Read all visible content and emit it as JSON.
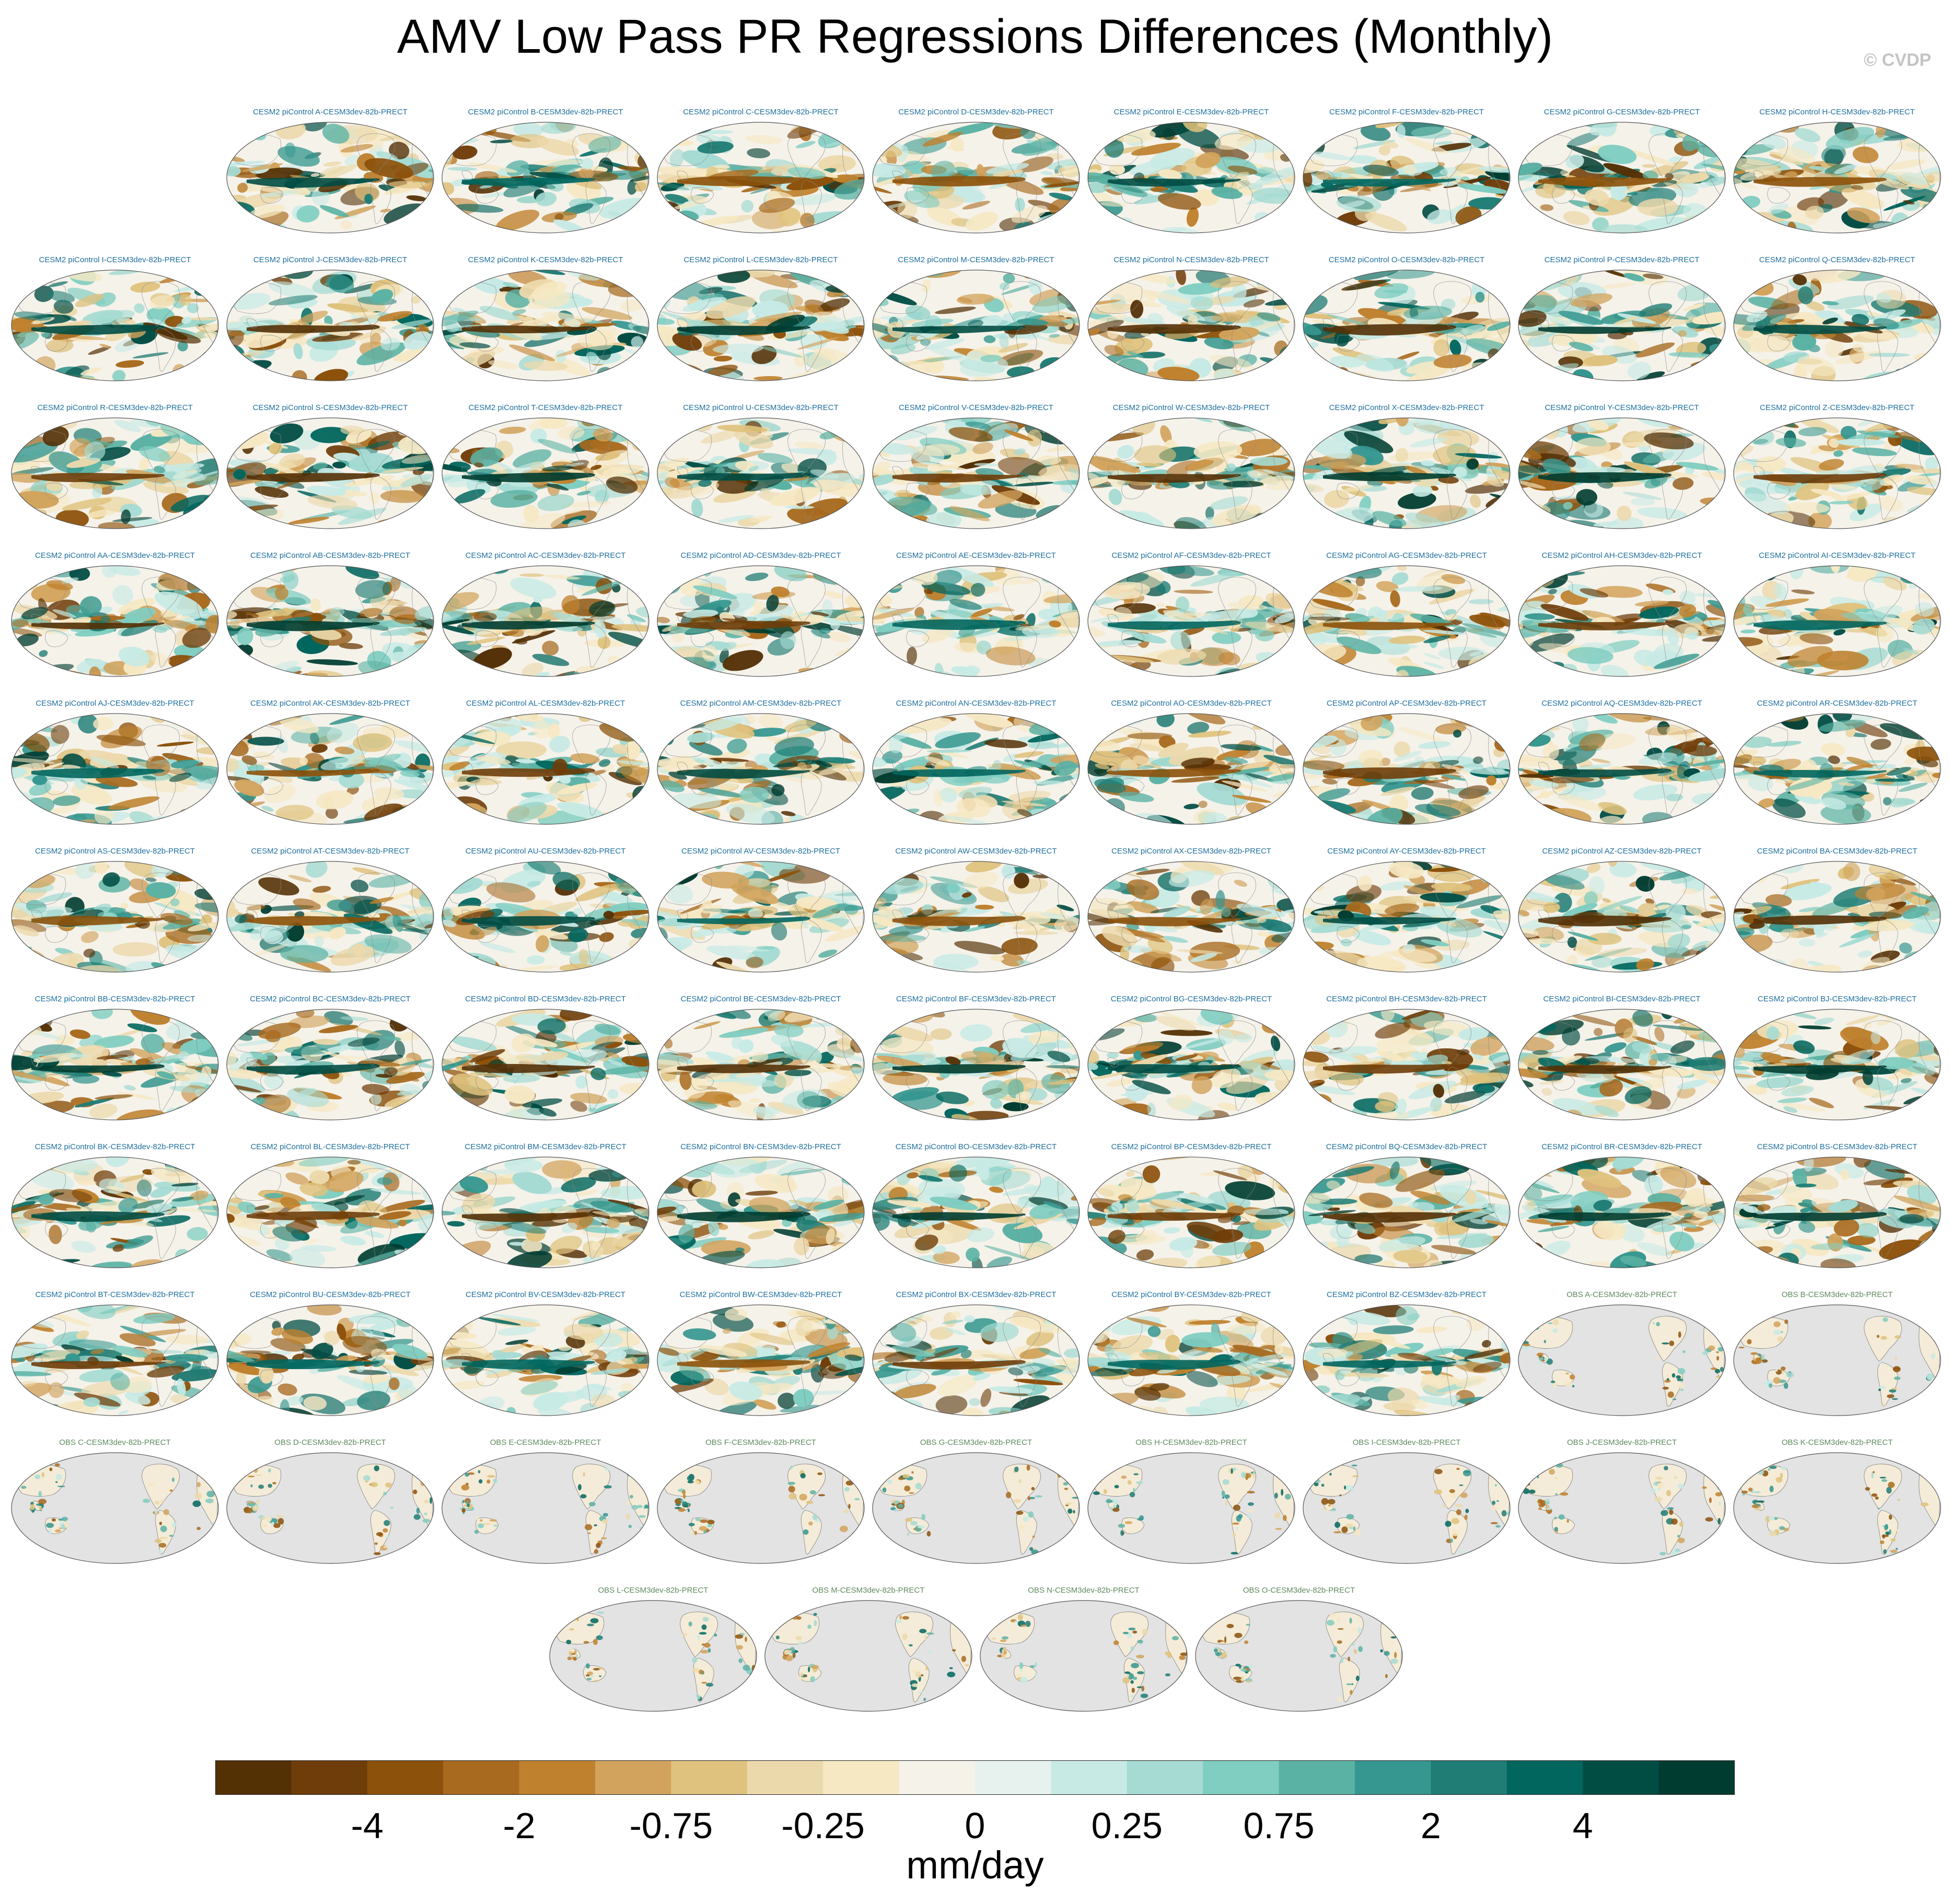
{
  "title": "AMV Low Pass PR Regressions Differences (Monthly)",
  "copyright": "© CVDP",
  "colors": {
    "model_label": "#1f6f9e",
    "obs_label": "#5d8a5d",
    "land_obs": "#e3e3e3",
    "coast": "#8a8a8a"
  },
  "panels": [
    {
      "label": "CESM2 piControl A-CESM3dev-82b-PRECT",
      "type": "model"
    },
    {
      "label": "CESM2 piControl B-CESM3dev-82b-PRECT",
      "type": "model"
    },
    {
      "label": "CESM2 piControl C-CESM3dev-82b-PRECT",
      "type": "model"
    },
    {
      "label": "CESM2 piControl D-CESM3dev-82b-PRECT",
      "type": "model"
    },
    {
      "label": "CESM2 piControl E-CESM3dev-82b-PRECT",
      "type": "model"
    },
    {
      "label": "CESM2 piControl F-CESM3dev-82b-PRECT",
      "type": "model"
    },
    {
      "label": "CESM2 piControl G-CESM3dev-82b-PRECT",
      "type": "model"
    },
    {
      "label": "CESM2 piControl H-CESM3dev-82b-PRECT",
      "type": "model"
    },
    {
      "label": "CESM2 piControl I-CESM3dev-82b-PRECT",
      "type": "model"
    },
    {
      "label": "CESM2 piControl J-CESM3dev-82b-PRECT",
      "type": "model"
    },
    {
      "label": "CESM2 piControl K-CESM3dev-82b-PRECT",
      "type": "model"
    },
    {
      "label": "CESM2 piControl L-CESM3dev-82b-PRECT",
      "type": "model"
    },
    {
      "label": "CESM2 piControl M-CESM3dev-82b-PRECT",
      "type": "model"
    },
    {
      "label": "CESM2 piControl N-CESM3dev-82b-PRECT",
      "type": "model"
    },
    {
      "label": "CESM2 piControl O-CESM3dev-82b-PRECT",
      "type": "model"
    },
    {
      "label": "CESM2 piControl P-CESM3dev-82b-PRECT",
      "type": "model"
    },
    {
      "label": "CESM2 piControl Q-CESM3dev-82b-PRECT",
      "type": "model"
    },
    {
      "label": "CESM2 piControl R-CESM3dev-82b-PRECT",
      "type": "model"
    },
    {
      "label": "CESM2 piControl S-CESM3dev-82b-PRECT",
      "type": "model"
    },
    {
      "label": "CESM2 piControl T-CESM3dev-82b-PRECT",
      "type": "model"
    },
    {
      "label": "CESM2 piControl U-CESM3dev-82b-PRECT",
      "type": "model"
    },
    {
      "label": "CESM2 piControl V-CESM3dev-82b-PRECT",
      "type": "model"
    },
    {
      "label": "CESM2 piControl W-CESM3dev-82b-PRECT",
      "type": "model"
    },
    {
      "label": "CESM2 piControl X-CESM3dev-82b-PRECT",
      "type": "model"
    },
    {
      "label": "CESM2 piControl Y-CESM3dev-82b-PRECT",
      "type": "model"
    },
    {
      "label": "CESM2 piControl Z-CESM3dev-82b-PRECT",
      "type": "model"
    },
    {
      "label": "CESM2 piControl AA-CESM3dev-82b-PRECT",
      "type": "model"
    },
    {
      "label": "CESM2 piControl AB-CESM3dev-82b-PRECT",
      "type": "model"
    },
    {
      "label": "CESM2 piControl AC-CESM3dev-82b-PRECT",
      "type": "model"
    },
    {
      "label": "CESM2 piControl AD-CESM3dev-82b-PRECT",
      "type": "model"
    },
    {
      "label": "CESM2 piControl AE-CESM3dev-82b-PRECT",
      "type": "model"
    },
    {
      "label": "CESM2 piControl AF-CESM3dev-82b-PRECT",
      "type": "model"
    },
    {
      "label": "CESM2 piControl AG-CESM3dev-82b-PRECT",
      "type": "model"
    },
    {
      "label": "CESM2 piControl AH-CESM3dev-82b-PRECT",
      "type": "model"
    },
    {
      "label": "CESM2 piControl AI-CESM3dev-82b-PRECT",
      "type": "model"
    },
    {
      "label": "CESM2 piControl AJ-CESM3dev-82b-PRECT",
      "type": "model"
    },
    {
      "label": "CESM2 piControl AK-CESM3dev-82b-PRECT",
      "type": "model"
    },
    {
      "label": "CESM2 piControl AL-CESM3dev-82b-PRECT",
      "type": "model"
    },
    {
      "label": "CESM2 piControl AM-CESM3dev-82b-PRECT",
      "type": "model"
    },
    {
      "label": "CESM2 piControl AN-CESM3dev-82b-PRECT",
      "type": "model"
    },
    {
      "label": "CESM2 piControl AO-CESM3dev-82b-PRECT",
      "type": "model"
    },
    {
      "label": "CESM2 piControl AP-CESM3dev-82b-PRECT",
      "type": "model"
    },
    {
      "label": "CESM2 piControl AQ-CESM3dev-82b-PRECT",
      "type": "model"
    },
    {
      "label": "CESM2 piControl AR-CESM3dev-82b-PRECT",
      "type": "model"
    },
    {
      "label": "CESM2 piControl AS-CESM3dev-82b-PRECT",
      "type": "model"
    },
    {
      "label": "CESM2 piControl AT-CESM3dev-82b-PRECT",
      "type": "model"
    },
    {
      "label": "CESM2 piControl AU-CESM3dev-82b-PRECT",
      "type": "model"
    },
    {
      "label": "CESM2 piControl AV-CESM3dev-82b-PRECT",
      "type": "model"
    },
    {
      "label": "CESM2 piControl AW-CESM3dev-82b-PRECT",
      "type": "model"
    },
    {
      "label": "CESM2 piControl AX-CESM3dev-82b-PRECT",
      "type": "model"
    },
    {
      "label": "CESM2 piControl AY-CESM3dev-82b-PRECT",
      "type": "model"
    },
    {
      "label": "CESM2 piControl AZ-CESM3dev-82b-PRECT",
      "type": "model"
    },
    {
      "label": "CESM2 piControl BA-CESM3dev-82b-PRECT",
      "type": "model"
    },
    {
      "label": "CESM2 piControl BB-CESM3dev-82b-PRECT",
      "type": "model"
    },
    {
      "label": "CESM2 piControl BC-CESM3dev-82b-PRECT",
      "type": "model"
    },
    {
      "label": "CESM2 piControl BD-CESM3dev-82b-PRECT",
      "type": "model"
    },
    {
      "label": "CESM2 piControl BE-CESM3dev-82b-PRECT",
      "type": "model"
    },
    {
      "label": "CESM2 piControl BF-CESM3dev-82b-PRECT",
      "type": "model"
    },
    {
      "label": "CESM2 piControl BG-CESM3dev-82b-PRECT",
      "type": "model"
    },
    {
      "label": "CESM2 piControl BH-CESM3dev-82b-PRECT",
      "type": "model"
    },
    {
      "label": "CESM2 piControl BI-CESM3dev-82b-PRECT",
      "type": "model"
    },
    {
      "label": "CESM2 piControl BJ-CESM3dev-82b-PRECT",
      "type": "model"
    },
    {
      "label": "CESM2 piControl BK-CESM3dev-82b-PRECT",
      "type": "model"
    },
    {
      "label": "CESM2 piControl BL-CESM3dev-82b-PRECT",
      "type": "model"
    },
    {
      "label": "CESM2 piControl BM-CESM3dev-82b-PRECT",
      "type": "model"
    },
    {
      "label": "CESM2 piControl BN-CESM3dev-82b-PRECT",
      "type": "model"
    },
    {
      "label": "CESM2 piControl BO-CESM3dev-82b-PRECT",
      "type": "model"
    },
    {
      "label": "CESM2 piControl BP-CESM3dev-82b-PRECT",
      "type": "model"
    },
    {
      "label": "CESM2 piControl BQ-CESM3dev-82b-PRECT",
      "type": "model"
    },
    {
      "label": "CESM2 piControl BR-CESM3dev-82b-PRECT",
      "type": "model"
    },
    {
      "label": "CESM2 piControl BS-CESM3dev-82b-PRECT",
      "type": "model"
    },
    {
      "label": "CESM2 piControl BT-CESM3dev-82b-PRECT",
      "type": "model"
    },
    {
      "label": "CESM2 piControl BU-CESM3dev-82b-PRECT",
      "type": "model"
    },
    {
      "label": "CESM2 piControl BV-CESM3dev-82b-PRECT",
      "type": "model"
    },
    {
      "label": "CESM2 piControl BW-CESM3dev-82b-PRECT",
      "type": "model"
    },
    {
      "label": "CESM2 piControl BX-CESM3dev-82b-PRECT",
      "type": "model"
    },
    {
      "label": "CESM2 piControl BY-CESM3dev-82b-PRECT",
      "type": "model"
    },
    {
      "label": "CESM2 piControl BZ-CESM3dev-82b-PRECT",
      "type": "model"
    },
    {
      "label": "OBS A-CESM3dev-82b-PRECT",
      "type": "obs"
    },
    {
      "label": "OBS B-CESM3dev-82b-PRECT",
      "type": "obs"
    },
    {
      "label": "OBS C-CESM3dev-82b-PRECT",
      "type": "obs"
    },
    {
      "label": "OBS D-CESM3dev-82b-PRECT",
      "type": "obs"
    },
    {
      "label": "OBS E-CESM3dev-82b-PRECT",
      "type": "obs"
    },
    {
      "label": "OBS F-CESM3dev-82b-PRECT",
      "type": "obs"
    },
    {
      "label": "OBS G-CESM3dev-82b-PRECT",
      "type": "obs"
    },
    {
      "label": "OBS H-CESM3dev-82b-PRECT",
      "type": "obs"
    },
    {
      "label": "OBS I-CESM3dev-82b-PRECT",
      "type": "obs"
    },
    {
      "label": "OBS J-CESM3dev-82b-PRECT",
      "type": "obs"
    },
    {
      "label": "OBS K-CESM3dev-82b-PRECT",
      "type": "obs"
    },
    {
      "label": "OBS L-CESM3dev-82b-PRECT",
      "type": "obs"
    },
    {
      "label": "OBS M-CESM3dev-82b-PRECT",
      "type": "obs"
    },
    {
      "label": "OBS N-CESM3dev-82b-PRECT",
      "type": "obs"
    },
    {
      "label": "OBS O-CESM3dev-82b-PRECT",
      "type": "obs"
    }
  ],
  "colorbar": {
    "units": "mm/day",
    "colors": [
      "#543005",
      "#6f3d09",
      "#8c510a",
      "#a86a1e",
      "#bf812d",
      "#d2a35c",
      "#dfc27d",
      "#ecd9ab",
      "#f6e8c3",
      "#f5f2ea",
      "#e7f2ef",
      "#c7eae5",
      "#a5dbd3",
      "#80cdc1",
      "#5ab2a4",
      "#35978f",
      "#1f7d75",
      "#01665e",
      "#014d44",
      "#003c30"
    ],
    "tick_labels": [
      "-4",
      "-2",
      "-0.75",
      "-0.25",
      "0",
      "0.25",
      "0.75",
      "2",
      "4"
    ],
    "tick_box_index": [
      2,
      4,
      6,
      8,
      10,
      12,
      14,
      16,
      18
    ]
  }
}
